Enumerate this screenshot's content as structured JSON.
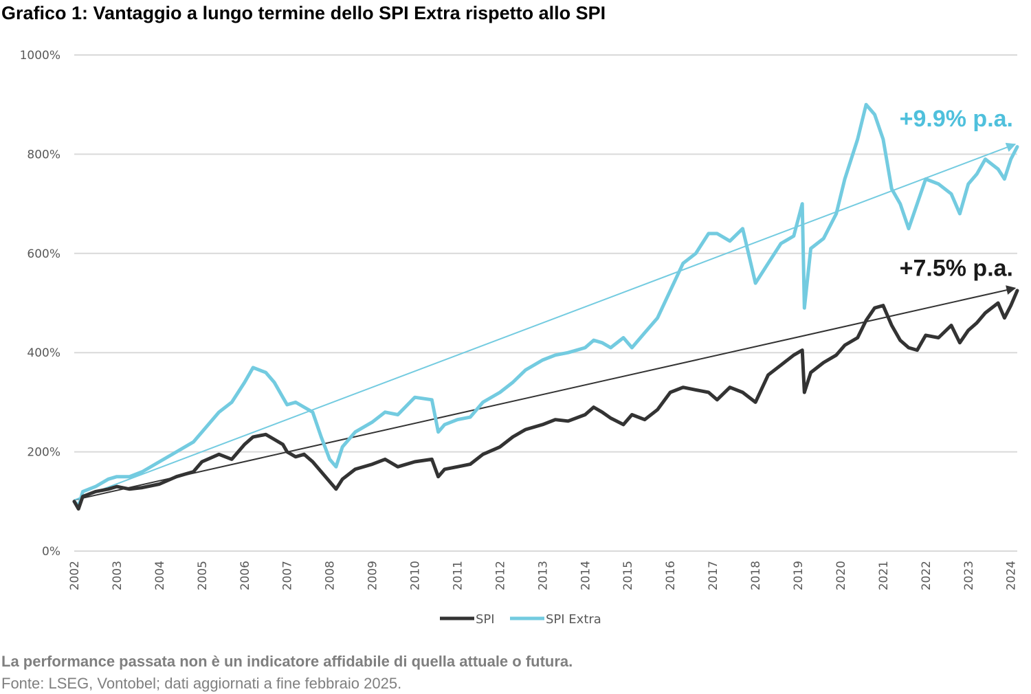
{
  "title": "Grafico 1: Vantaggio a lungo termine dello SPI Extra rispetto allo SPI",
  "footnote_bold": "La performance passata non è un indicatore affidabile di quella attuale o futura.",
  "footnote_source": "Fonte: LSEG, Vontobel; dati aggiornati a fine febbraio 2025.",
  "colors": {
    "spi": "#333333",
    "spi_extra": "#73cbe0",
    "grid": "#d9d9d9",
    "axis_text": "#595959",
    "note": "#7f7f7f"
  },
  "chart_data": {
    "type": "line",
    "ylim": [
      0,
      1000
    ],
    "yticks": [
      0,
      200,
      400,
      600,
      800,
      1000
    ],
    "ytick_labels": [
      "0%",
      "200%",
      "400%",
      "600%",
      "800%",
      "1000%"
    ],
    "xlim": [
      2002,
      2024.15
    ],
    "xticks": [
      2002,
      2003,
      2004,
      2005,
      2006,
      2007,
      2008,
      2009,
      2010,
      2011,
      2012,
      2013,
      2014,
      2015,
      2016,
      2017,
      2018,
      2019,
      2020,
      2021,
      2022,
      2023,
      2024
    ],
    "xtick_labels": [
      "2002",
      "2003",
      "2004",
      "2005",
      "2006",
      "2007",
      "2008",
      "2009",
      "2010",
      "2011",
      "2012",
      "2013",
      "2014",
      "2015",
      "2016",
      "2017",
      "2018",
      "2019",
      "2020",
      "2021",
      "2022",
      "2023",
      "2024"
    ],
    "grid": true,
    "legend_position": "bottom-center",
    "series": [
      {
        "name": "SPI",
        "color": "#333333",
        "x": [
          2002.0,
          2002.1,
          2002.2,
          2002.5,
          2002.8,
          2003.0,
          2003.3,
          2003.6,
          2004.0,
          2004.4,
          2004.8,
          2005.0,
          2005.4,
          2005.7,
          2006.0,
          2006.2,
          2006.5,
          2006.7,
          2006.9,
          2007.0,
          2007.2,
          2007.4,
          2007.6,
          2007.8,
          2008.0,
          2008.15,
          2008.3,
          2008.6,
          2009.0,
          2009.3,
          2009.6,
          2010.0,
          2010.4,
          2010.55,
          2010.7,
          2011.0,
          2011.3,
          2011.6,
          2012.0,
          2012.3,
          2012.6,
          2013.0,
          2013.3,
          2013.6,
          2014.0,
          2014.2,
          2014.4,
          2014.6,
          2014.9,
          2015.1,
          2015.4,
          2015.7,
          2016.0,
          2016.3,
          2016.6,
          2016.9,
          2017.1,
          2017.4,
          2017.7,
          2018.0,
          2018.3,
          2018.6,
          2018.9,
          2019.1,
          2019.15,
          2019.3,
          2019.6,
          2019.9,
          2020.1,
          2020.4,
          2020.6,
          2020.8,
          2021.0,
          2021.2,
          2021.4,
          2021.6,
          2021.8,
          2022.0,
          2022.3,
          2022.6,
          2022.8,
          2023.0,
          2023.2,
          2023.4,
          2023.7,
          2023.85,
          2024.0,
          2024.15
        ],
        "y": [
          100,
          85,
          110,
          120,
          125,
          130,
          125,
          128,
          135,
          150,
          160,
          180,
          195,
          185,
          215,
          230,
          235,
          225,
          215,
          200,
          190,
          195,
          180,
          160,
          140,
          125,
          145,
          165,
          175,
          185,
          170,
          180,
          185,
          150,
          165,
          170,
          175,
          195,
          210,
          230,
          245,
          255,
          265,
          262,
          275,
          290,
          280,
          268,
          255,
          275,
          265,
          285,
          320,
          330,
          325,
          320,
          305,
          330,
          320,
          300,
          355,
          375,
          395,
          405,
          320,
          360,
          380,
          395,
          415,
          430,
          465,
          490,
          495,
          455,
          425,
          410,
          405,
          435,
          430,
          455,
          420,
          445,
          460,
          480,
          500,
          470,
          495,
          525
        ]
      },
      {
        "name": "SPI Extra",
        "color": "#73cbe0",
        "x": [
          2002.0,
          2002.1,
          2002.2,
          2002.5,
          2002.8,
          2003.0,
          2003.3,
          2003.6,
          2004.0,
          2004.4,
          2004.8,
          2005.0,
          2005.4,
          2005.7,
          2006.0,
          2006.2,
          2006.5,
          2006.7,
          2006.9,
          2007.0,
          2007.2,
          2007.4,
          2007.6,
          2007.8,
          2008.0,
          2008.15,
          2008.3,
          2008.6,
          2009.0,
          2009.3,
          2009.6,
          2010.0,
          2010.4,
          2010.55,
          2010.7,
          2011.0,
          2011.3,
          2011.6,
          2012.0,
          2012.3,
          2012.6,
          2013.0,
          2013.3,
          2013.6,
          2014.0,
          2014.2,
          2014.4,
          2014.6,
          2014.9,
          2015.1,
          2015.4,
          2015.7,
          2016.0,
          2016.3,
          2016.6,
          2016.9,
          2017.1,
          2017.4,
          2017.7,
          2018.0,
          2018.3,
          2018.6,
          2018.9,
          2019.1,
          2019.15,
          2019.3,
          2019.6,
          2019.9,
          2020.1,
          2020.4,
          2020.6,
          2020.8,
          2021.0,
          2021.2,
          2021.4,
          2021.6,
          2021.8,
          2022.0,
          2022.3,
          2022.6,
          2022.8,
          2023.0,
          2023.2,
          2023.4,
          2023.7,
          2023.85,
          2024.0,
          2024.15
        ],
        "y": [
          100,
          90,
          120,
          130,
          145,
          150,
          150,
          160,
          180,
          200,
          220,
          240,
          280,
          300,
          340,
          370,
          360,
          340,
          310,
          295,
          300,
          290,
          280,
          230,
          185,
          170,
          210,
          240,
          260,
          280,
          275,
          310,
          305,
          240,
          255,
          265,
          270,
          300,
          320,
          340,
          365,
          385,
          395,
          400,
          410,
          425,
          420,
          410,
          430,
          410,
          440,
          470,
          525,
          580,
          600,
          640,
          640,
          625,
          650,
          540,
          580,
          620,
          635,
          700,
          490,
          610,
          630,
          680,
          750,
          830,
          900,
          880,
          830,
          730,
          700,
          650,
          700,
          750,
          740,
          720,
          680,
          740,
          760,
          790,
          770,
          750,
          790,
          815
        ]
      }
    ],
    "trend_lines": [
      {
        "series": "SPI",
        "from": [
          2002.0,
          103
        ],
        "to": [
          2024.1,
          530
        ],
        "label": "+7.5% p.a."
      },
      {
        "series": "SPI Extra",
        "from": [
          2002.0,
          103
        ],
        "to": [
          2024.1,
          820
        ],
        "label": "+9.9% p.a."
      }
    ]
  }
}
